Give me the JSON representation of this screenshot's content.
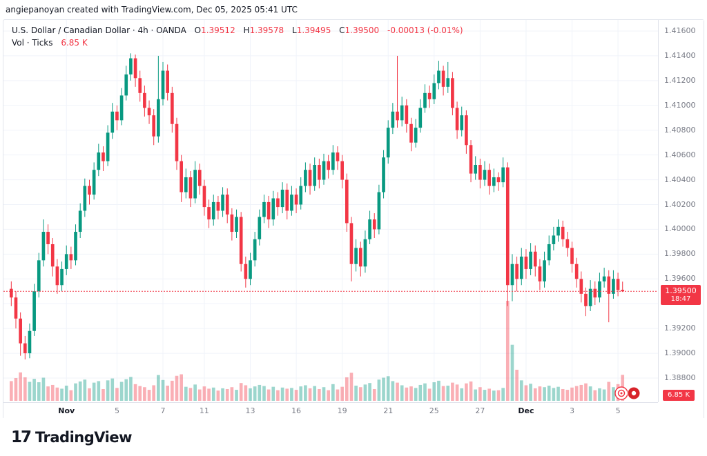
{
  "attribution": "angiepanoyan created with TradingView.com, Dec 05, 2025 05:41 UTC",
  "legend": {
    "symbol_line": "U.S. Dollar / Canadian Dollar · 4h · OANDA",
    "o_label": "O",
    "o_value": "1.39512",
    "h_label": "H",
    "h_value": "1.39578",
    "l_label": "L",
    "l_value": "1.39495",
    "c_label": "C",
    "c_value": "1.39500",
    "change": "-0.00013 (-0.01%)",
    "volume_line": "Vol · Ticks",
    "volume_value": "6.85 K"
  },
  "price_axis": {
    "labels": [
      "1.41600",
      "1.41400",
      "1.41200",
      "1.41000",
      "1.40800",
      "1.40600",
      "1.40400",
      "1.40200",
      "1.40000",
      "1.39800",
      "1.39600",
      "1.39200",
      "1.39000",
      "1.38800"
    ],
    "current_price": "1.39500",
    "countdown": "18:47",
    "current_volume": "6.85 K"
  },
  "logo": {
    "glyph": "17",
    "text": "TradingView"
  },
  "colors": {
    "up": "#089981",
    "down": "#f23645",
    "volume_up": "rgba(8,153,129,0.4)",
    "volume_down": "rgba(242,54,69,0.4)",
    "grid": "#f0f3fa",
    "axis_text": "#787b86",
    "text": "#131722",
    "badge_red": "#f23645"
  },
  "chart_data": {
    "type": "candlestick",
    "title": "U.S. Dollar / Canadian Dollar, 4h, OANDA",
    "y_axis": {
      "top": 1.416,
      "bottom": 1.388,
      "step": 0.002
    },
    "x_axis_ticks": [
      {
        "index": 12,
        "label": "Nov",
        "major": true
      },
      {
        "index": 23,
        "label": "5",
        "major": false
      },
      {
        "index": 33,
        "label": "7",
        "major": false
      },
      {
        "index": 42,
        "label": "11",
        "major": false
      },
      {
        "index": 52,
        "label": "13",
        "major": false
      },
      {
        "index": 62,
        "label": "16",
        "major": false
      },
      {
        "index": 72,
        "label": "19",
        "major": false
      },
      {
        "index": 82,
        "label": "21",
        "major": false
      },
      {
        "index": 92,
        "label": "25",
        "major": false
      },
      {
        "index": 102,
        "label": "27",
        "major": false
      },
      {
        "index": 112,
        "label": "Dec",
        "major": true
      },
      {
        "index": 122,
        "label": "3",
        "major": false
      },
      {
        "index": 132,
        "label": "5",
        "major": false
      }
    ],
    "visible_slots": 140,
    "candle_format": [
      "open",
      "high",
      "low",
      "close",
      "volume_k_ticks"
    ],
    "candles": [
      [
        1.3952,
        1.3958,
        1.3938,
        1.3945,
        5.2
      ],
      [
        1.3945,
        1.395,
        1.392,
        1.3928,
        6.0
      ],
      [
        1.3928,
        1.3933,
        1.3898,
        1.3908,
        7.5
      ],
      [
        1.3908,
        1.3914,
        1.3895,
        1.39,
        6.2
      ],
      [
        1.39,
        1.3924,
        1.3896,
        1.3918,
        5.0
      ],
      [
        1.3918,
        1.3956,
        1.3914,
        1.395,
        5.8
      ],
      [
        1.395,
        1.3981,
        1.3945,
        1.3975,
        4.9
      ],
      [
        1.3975,
        1.4008,
        1.397,
        1.3998,
        6.1
      ],
      [
        1.3998,
        1.4004,
        1.398,
        1.3988,
        3.8
      ],
      [
        1.3988,
        1.3993,
        1.3962,
        1.397,
        4.2
      ],
      [
        1.397,
        1.3976,
        1.3948,
        1.3955,
        3.5
      ],
      [
        1.3955,
        1.3974,
        1.395,
        1.3968,
        3.2
      ],
      [
        1.3968,
        1.3987,
        1.3963,
        1.398,
        4.0
      ],
      [
        1.398,
        1.3986,
        1.3968,
        1.3975,
        2.8
      ],
      [
        1.3975,
        1.4004,
        1.3971,
        1.3998,
        4.6
      ],
      [
        1.3998,
        1.4021,
        1.3993,
        1.4015,
        5.1
      ],
      [
        1.4015,
        1.4041,
        1.401,
        1.4035,
        5.6
      ],
      [
        1.4035,
        1.404,
        1.402,
        1.4028,
        3.3
      ],
      [
        1.4028,
        1.4054,
        1.4024,
        1.4048,
        4.8
      ],
      [
        1.4048,
        1.4069,
        1.4043,
        1.4062,
        5.2
      ],
      [
        1.4062,
        1.4067,
        1.4047,
        1.4055,
        3.1
      ],
      [
        1.4055,
        1.4084,
        1.4051,
        1.4078,
        5.4
      ],
      [
        1.4078,
        1.4102,
        1.4073,
        1.4095,
        5.9
      ],
      [
        1.4095,
        1.41,
        1.408,
        1.4088,
        3.4
      ],
      [
        1.4088,
        1.4114,
        1.4084,
        1.4108,
        5.0
      ],
      [
        1.4108,
        1.4132,
        1.4104,
        1.4125,
        5.7
      ],
      [
        1.4125,
        1.4142,
        1.412,
        1.4138,
        6.3
      ],
      [
        1.4138,
        1.4141,
        1.4115,
        1.4122,
        4.4
      ],
      [
        1.4122,
        1.4128,
        1.4103,
        1.411,
        3.9
      ],
      [
        1.411,
        1.4116,
        1.4091,
        1.4098,
        3.6
      ],
      [
        1.4098,
        1.4104,
        1.4085,
        1.4092,
        2.9
      ],
      [
        1.4092,
        1.4097,
        1.4068,
        1.4075,
        4.1
      ],
      [
        1.4075,
        1.414,
        1.407,
        1.4105,
        6.8
      ],
      [
        1.4105,
        1.4135,
        1.41,
        1.4128,
        5.5
      ],
      [
        1.4128,
        1.4133,
        1.4104,
        1.411,
        4.0
      ],
      [
        1.411,
        1.4115,
        1.4078,
        1.4085,
        5.3
      ],
      [
        1.4085,
        1.409,
        1.4048,
        1.4055,
        6.6
      ],
      [
        1.4055,
        1.406,
        1.4022,
        1.403,
        7.0
      ],
      [
        1.403,
        1.4049,
        1.4025,
        1.4042,
        3.7
      ],
      [
        1.4042,
        1.4047,
        1.4018,
        1.4025,
        3.4
      ],
      [
        1.4025,
        1.4055,
        1.4021,
        1.4048,
        4.3
      ],
      [
        1.4048,
        1.4053,
        1.4028,
        1.4035,
        3.0
      ],
      [
        1.4035,
        1.404,
        1.4011,
        1.4018,
        3.8
      ],
      [
        1.4018,
        1.4024,
        1.4001,
        1.4008,
        3.2
      ],
      [
        1.4008,
        1.4028,
        1.4003,
        1.4022,
        3.5
      ],
      [
        1.4022,
        1.4027,
        1.4008,
        1.4015,
        2.7
      ],
      [
        1.4015,
        1.4034,
        1.401,
        1.4028,
        3.3
      ],
      [
        1.4028,
        1.4033,
        1.4005,
        1.4012,
        3.1
      ],
      [
        1.4012,
        1.4017,
        1.3991,
        1.3998,
        3.6
      ],
      [
        1.3998,
        1.4016,
        1.3993,
        1.401,
        2.9
      ],
      [
        1.401,
        1.4014,
        1.3966,
        1.3972,
        4.7
      ],
      [
        1.3972,
        1.3978,
        1.3953,
        1.396,
        4.1
      ],
      [
        1.396,
        1.3981,
        1.3955,
        1.3975,
        3.3
      ],
      [
        1.3975,
        1.3998,
        1.397,
        1.3992,
        3.8
      ],
      [
        1.3992,
        1.4016,
        1.3987,
        1.401,
        4.2
      ],
      [
        1.401,
        1.4028,
        1.4005,
        1.4022,
        3.9
      ],
      [
        1.4022,
        1.4027,
        1.4001,
        1.4008,
        3.0
      ],
      [
        1.4008,
        1.4031,
        1.4003,
        1.4025,
        3.7
      ],
      [
        1.4025,
        1.403,
        1.4011,
        1.4018,
        2.8
      ],
      [
        1.4018,
        1.4038,
        1.4013,
        1.4032,
        3.5
      ],
      [
        1.4032,
        1.4037,
        1.4008,
        1.4015,
        3.2
      ],
      [
        1.4015,
        1.4035,
        1.4011,
        1.4028,
        3.4
      ],
      [
        1.4028,
        1.4033,
        1.4013,
        1.402,
        2.9
      ],
      [
        1.402,
        1.4042,
        1.4016,
        1.4035,
        3.8
      ],
      [
        1.4035,
        1.4054,
        1.403,
        1.4048,
        4.1
      ],
      [
        1.4048,
        1.4053,
        1.4028,
        1.4035,
        3.3
      ],
      [
        1.4035,
        1.4058,
        1.4031,
        1.4052,
        3.9
      ],
      [
        1.4052,
        1.4057,
        1.4033,
        1.404,
        3.1
      ],
      [
        1.404,
        1.4061,
        1.4036,
        1.4055,
        3.6
      ],
      [
        1.4055,
        1.406,
        1.4041,
        1.4048,
        2.8
      ],
      [
        1.4048,
        1.4068,
        1.4044,
        1.4062,
        4.4
      ],
      [
        1.4062,
        1.4067,
        1.4048,
        1.4055,
        3.0
      ],
      [
        1.4055,
        1.406,
        1.4033,
        1.404,
        3.7
      ],
      [
        1.404,
        1.4045,
        1.3998,
        1.4005,
        6.2
      ],
      [
        1.4005,
        1.401,
        1.3958,
        1.3972,
        7.4
      ],
      [
        1.3972,
        1.3992,
        1.3966,
        1.3985,
        4.0
      ],
      [
        1.3985,
        1.399,
        1.3962,
        1.397,
        3.6
      ],
      [
        1.397,
        1.3999,
        1.3965,
        1.3992,
        4.3
      ],
      [
        1.3992,
        1.4015,
        1.3988,
        1.4008,
        4.7
      ],
      [
        1.4008,
        1.4013,
        1.3993,
        1.4,
        3.1
      ],
      [
        1.4,
        1.4036,
        1.3996,
        1.403,
        5.6
      ],
      [
        1.403,
        1.4064,
        1.4025,
        1.4058,
        6.1
      ],
      [
        1.4058,
        1.4088,
        1.4053,
        1.4082,
        6.5
      ],
      [
        1.4082,
        1.4102,
        1.4077,
        1.4095,
        5.2
      ],
      [
        1.4095,
        1.414,
        1.4082,
        1.4088,
        4.8
      ],
      [
        1.4088,
        1.4107,
        1.4083,
        1.41,
        4.1
      ],
      [
        1.41,
        1.4105,
        1.4078,
        1.4085,
        3.5
      ],
      [
        1.4085,
        1.409,
        1.4063,
        1.407,
        3.8
      ],
      [
        1.407,
        1.4089,
        1.4066,
        1.4082,
        3.4
      ],
      [
        1.4082,
        1.4105,
        1.4078,
        1.4098,
        4.2
      ],
      [
        1.4098,
        1.4117,
        1.4094,
        1.411,
        4.6
      ],
      [
        1.411,
        1.4116,
        1.4098,
        1.4105,
        3.2
      ],
      [
        1.4105,
        1.4125,
        1.4101,
        1.4118,
        4.9
      ],
      [
        1.4118,
        1.4136,
        1.4113,
        1.4128,
        5.3
      ],
      [
        1.4128,
        1.4132,
        1.4108,
        1.4115,
        3.9
      ],
      [
        1.4115,
        1.4135,
        1.411,
        1.4122,
        4.0
      ],
      [
        1.4122,
        1.4127,
        1.4092,
        1.4098,
        4.8
      ],
      [
        1.4098,
        1.4103,
        1.4073,
        1.408,
        4.3
      ],
      [
        1.408,
        1.4099,
        1.4075,
        1.4092,
        3.3
      ],
      [
        1.4092,
        1.4096,
        1.4061,
        1.4068,
        4.6
      ],
      [
        1.4068,
        1.4072,
        1.4038,
        1.4045,
        5.1
      ],
      [
        1.4045,
        1.4059,
        1.404,
        1.4052,
        3.0
      ],
      [
        1.4052,
        1.4057,
        1.4033,
        1.404,
        3.6
      ],
      [
        1.404,
        1.4055,
        1.4035,
        1.4048,
        2.9
      ],
      [
        1.4048,
        1.4053,
        1.4028,
        1.4035,
        3.2
      ],
      [
        1.4035,
        1.4049,
        1.403,
        1.4042,
        2.7
      ],
      [
        1.4042,
        1.4046,
        1.4031,
        1.4038,
        2.8
      ],
      [
        1.4038,
        1.4058,
        1.4034,
        1.405,
        3.4
      ],
      [
        1.405,
        1.4054,
        1.3938,
        1.3955,
        26.4
      ],
      [
        1.3955,
        1.398,
        1.3942,
        1.3972,
        14.8
      ],
      [
        1.3972,
        1.3978,
        1.395,
        1.396,
        8.2
      ],
      [
        1.396,
        1.3985,
        1.3955,
        1.3978,
        5.4
      ],
      [
        1.3978,
        1.3984,
        1.396,
        1.3968,
        4.1
      ],
      [
        1.3968,
        1.3989,
        1.3963,
        1.3982,
        4.5
      ],
      [
        1.3982,
        1.3987,
        1.3962,
        1.397,
        3.3
      ],
      [
        1.397,
        1.3976,
        1.3951,
        1.3958,
        3.8
      ],
      [
        1.3958,
        1.3982,
        1.3953,
        1.3975,
        3.6
      ],
      [
        1.3975,
        1.3995,
        1.3971,
        1.3988,
        4.0
      ],
      [
        1.3988,
        1.4002,
        1.3983,
        1.3995,
        3.4
      ],
      [
        1.3995,
        1.4008,
        1.399,
        1.4002,
        3.7
      ],
      [
        1.4002,
        1.4007,
        1.3986,
        1.3992,
        3.1
      ],
      [
        1.3992,
        1.3998,
        1.3978,
        1.3985,
        2.9
      ],
      [
        1.3985,
        1.399,
        1.3965,
        1.3972,
        3.5
      ],
      [
        1.3972,
        1.3977,
        1.3953,
        1.396,
        3.9
      ],
      [
        1.396,
        1.3966,
        1.3941,
        1.3948,
        4.2
      ],
      [
        1.3948,
        1.3953,
        1.393,
        1.3938,
        4.6
      ],
      [
        1.3938,
        1.3959,
        1.3934,
        1.3952,
        3.8
      ],
      [
        1.3952,
        1.3958,
        1.3939,
        1.3945,
        2.8
      ],
      [
        1.3945,
        1.3965,
        1.3941,
        1.3958,
        3.3
      ],
      [
        1.3958,
        1.3969,
        1.3953,
        1.3962,
        3.0
      ],
      [
        1.3962,
        1.3967,
        1.3925,
        1.3948,
        5.0
      ],
      [
        1.3948,
        1.3967,
        1.3944,
        1.396,
        3.6
      ],
      [
        1.396,
        1.3965,
        1.3946,
        1.3951,
        4.4
      ],
      [
        1.39512,
        1.39578,
        1.39495,
        1.395,
        6.85
      ]
    ],
    "current": {
      "price": 1.395,
      "countdown": "18:47",
      "volume_k": 6.85,
      "change": -0.00013,
      "change_pct": -0.01
    }
  }
}
